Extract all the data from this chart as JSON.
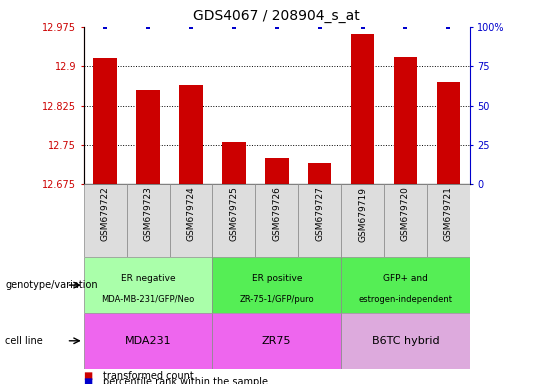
{
  "title": "GDS4067 / 208904_s_at",
  "samples": [
    "GSM679722",
    "GSM679723",
    "GSM679724",
    "GSM679725",
    "GSM679726",
    "GSM679727",
    "GSM679719",
    "GSM679720",
    "GSM679721"
  ],
  "bar_values": [
    12.915,
    12.855,
    12.865,
    12.755,
    12.725,
    12.715,
    12.962,
    12.918,
    12.87
  ],
  "percentile_values": [
    100,
    100,
    100,
    100,
    100,
    100,
    100,
    100,
    100
  ],
  "ylim": [
    12.675,
    12.975
  ],
  "yticks": [
    12.675,
    12.75,
    12.825,
    12.9,
    12.975
  ],
  "ytick_labels": [
    "12.675",
    "12.75",
    "12.825",
    "12.9",
    "12.975"
  ],
  "right_yticks": [
    0,
    25,
    50,
    75,
    100
  ],
  "right_ytick_labels": [
    "0",
    "25",
    "50",
    "75",
    "100%"
  ],
  "bar_color": "#cc0000",
  "percentile_color": "#0000cc",
  "groups": [
    {
      "label": "ER negative\nMDA-MB-231/GFP/Neo",
      "color": "#aaffaa",
      "start": 0,
      "end": 3
    },
    {
      "label": "ER positive\nZR-75-1/GFP/puro",
      "color": "#55ee55",
      "start": 3,
      "end": 6
    },
    {
      "label": "GFP+ and\nestrogen-independent",
      "color": "#55ee55",
      "start": 6,
      "end": 9
    }
  ],
  "cell_lines": [
    {
      "label": "MDA231",
      "color": "#ee66ee",
      "start": 0,
      "end": 3
    },
    {
      "label": "ZR75",
      "color": "#ee66ee",
      "start": 3,
      "end": 6
    },
    {
      "label": "B6TC hybrid",
      "color": "#ddaadd",
      "start": 6,
      "end": 9
    }
  ],
  "legend_items": [
    {
      "label": "transformed count",
      "color": "#cc0000"
    },
    {
      "label": "percentile rank within the sample",
      "color": "#0000cc"
    }
  ],
  "left_label_genotype": "genotype/variation",
  "left_label_cell": "cell line",
  "sample_bg": "#dddddd"
}
